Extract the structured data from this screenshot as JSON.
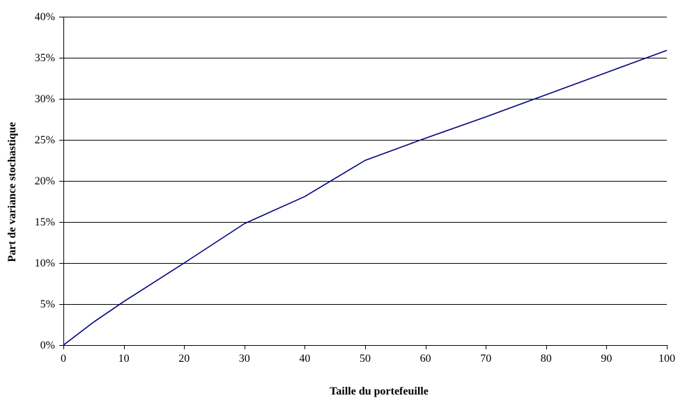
{
  "chart_data": {
    "type": "line",
    "title": "",
    "xlabel": "Taille du portefeuille",
    "ylabel": "Part de variance stochastique",
    "xlim": [
      0,
      100
    ],
    "ylim": [
      0,
      0.4
    ],
    "x_ticks": [
      0,
      10,
      20,
      30,
      40,
      50,
      60,
      70,
      80,
      90,
      100
    ],
    "x_tick_labels": [
      "0",
      "10",
      "20",
      "30",
      "40",
      "50",
      "60",
      "70",
      "80",
      "90",
      "100"
    ],
    "y_ticks": [
      0,
      0.05,
      0.1,
      0.15,
      0.2,
      0.25,
      0.3,
      0.35,
      0.4
    ],
    "y_tick_labels": [
      "0%",
      "5%",
      "10%",
      "15%",
      "20%",
      "25%",
      "30%",
      "35%",
      "40%"
    ],
    "grid": "horizontal",
    "series": [
      {
        "x": [
          0,
          5,
          10,
          20,
          30,
          40,
          50,
          60,
          70,
          80,
          90,
          100
        ],
        "values": [
          0,
          0.028,
          0.053,
          0.1,
          0.148,
          0.181,
          0.225,
          0.252,
          0.278,
          0.305,
          0.332,
          0.359
        ]
      }
    ],
    "colors": {
      "line": "#000080",
      "grid": "#000000",
      "axis": "#000000"
    },
    "legend": "none"
  }
}
